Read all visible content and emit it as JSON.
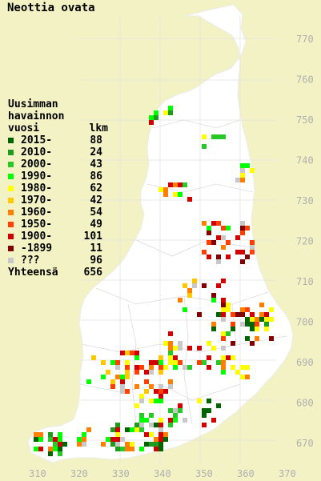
{
  "title": "Neottia ovata",
  "legend": {
    "header_lines": [
      "Uusimman",
      "havainnon"
    ],
    "header_col1": "vuosi",
    "header_col2": "lkm",
    "items": [
      {
        "label": "2015-",
        "count": "88",
        "color": "#006400"
      },
      {
        "label": "2010-",
        "count": "24",
        "color": "#1e9a1e"
      },
      {
        "label": "2000-",
        "count": "43",
        "color": "#28c828"
      },
      {
        "label": "1990-",
        "count": "86",
        "color": "#00ff00"
      },
      {
        "label": "1980-",
        "count": "62",
        "color": "#ffff00"
      },
      {
        "label": "1970-",
        "count": "42",
        "color": "#ffc800"
      },
      {
        "label": "1960-",
        "count": "54",
        "color": "#ff8000"
      },
      {
        "label": "1950-",
        "count": "49",
        "color": "#ff4000"
      },
      {
        "label": "1900-",
        "count": "101",
        "color": "#d00000"
      },
      {
        "label": "-1899",
        "count": "11",
        "color": "#800000"
      },
      {
        "label": "???",
        "count": "96",
        "color": "#c8c8c8"
      }
    ],
    "total_label": "Yhteensä",
    "total_count": "656"
  },
  "axes": {
    "y_labels": [
      "770",
      "760",
      "750",
      "740",
      "730",
      "720",
      "710",
      "700",
      "690",
      "680",
      "670"
    ],
    "x_labels": [
      "310",
      "320",
      "330",
      "340",
      "350",
      "360",
      "370"
    ]
  },
  "colors": {
    "background": "#f2f2c4",
    "land": "#ffffff",
    "grid": "#d8d8d8",
    "axis_label": "#b0b0b0"
  }
}
